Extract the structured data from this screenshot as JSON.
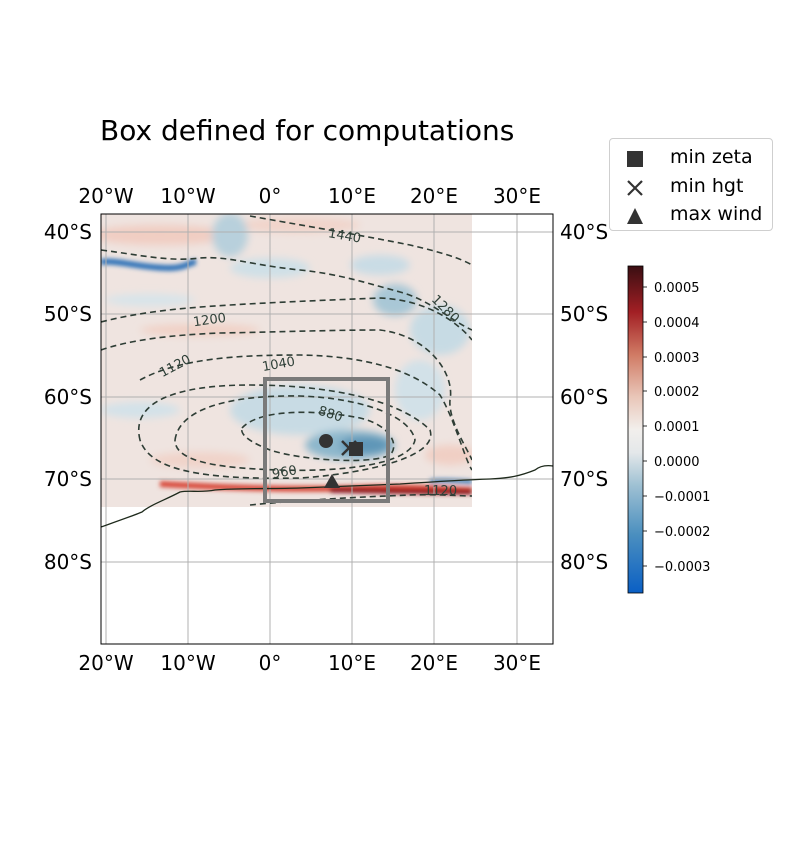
{
  "title": "Box defined for computations",
  "lon_ticks": [
    "20°W",
    "10°W",
    "0°",
    "10°E",
    "20°E",
    "30°E"
  ],
  "lat_ticks": [
    "40°S",
    "50°S",
    "60°S",
    "70°S",
    "80°S"
  ],
  "map_extent": {
    "lon": [
      -20,
      35
    ],
    "lat": [
      -90,
      -38
    ]
  },
  "box_bounds": {
    "lon": [
      -1,
      14.5
    ],
    "lat": [
      -72.5,
      -58
    ]
  },
  "contour_labels": [
    "1440",
    "1280",
    "1200",
    "1120",
    "1040",
    "880",
    "960",
    "1120"
  ],
  "legend": {
    "items": [
      {
        "label": "min zeta",
        "icon": "square-marker-icon"
      },
      {
        "label": "min hgt",
        "icon": "x-marker-icon"
      },
      {
        "label": "max wind",
        "icon": "triangle-marker-icon"
      }
    ]
  },
  "colorbar": {
    "ticks": [
      "0.0005",
      "0.0004",
      "0.0003",
      "0.0002",
      "0.0001",
      "0.0000",
      "−0.0001",
      "−0.0002",
      "−0.0003"
    ],
    "range": [
      -0.00035,
      0.00055
    ],
    "colors": {
      "low": "#0a5fc4",
      "mid": "#f2f0ee",
      "high": "#3a0e12"
    }
  },
  "markers": {
    "min_zeta": {
      "lon": 10.5,
      "lat": -66.5
    },
    "min_hgt": {
      "lon": 9.5,
      "lat": -66
    },
    "max_wind": {
      "lon": 7.5,
      "lat": -70.5
    },
    "circle": {
      "lon": 7,
      "lat": -65.5
    }
  }
}
